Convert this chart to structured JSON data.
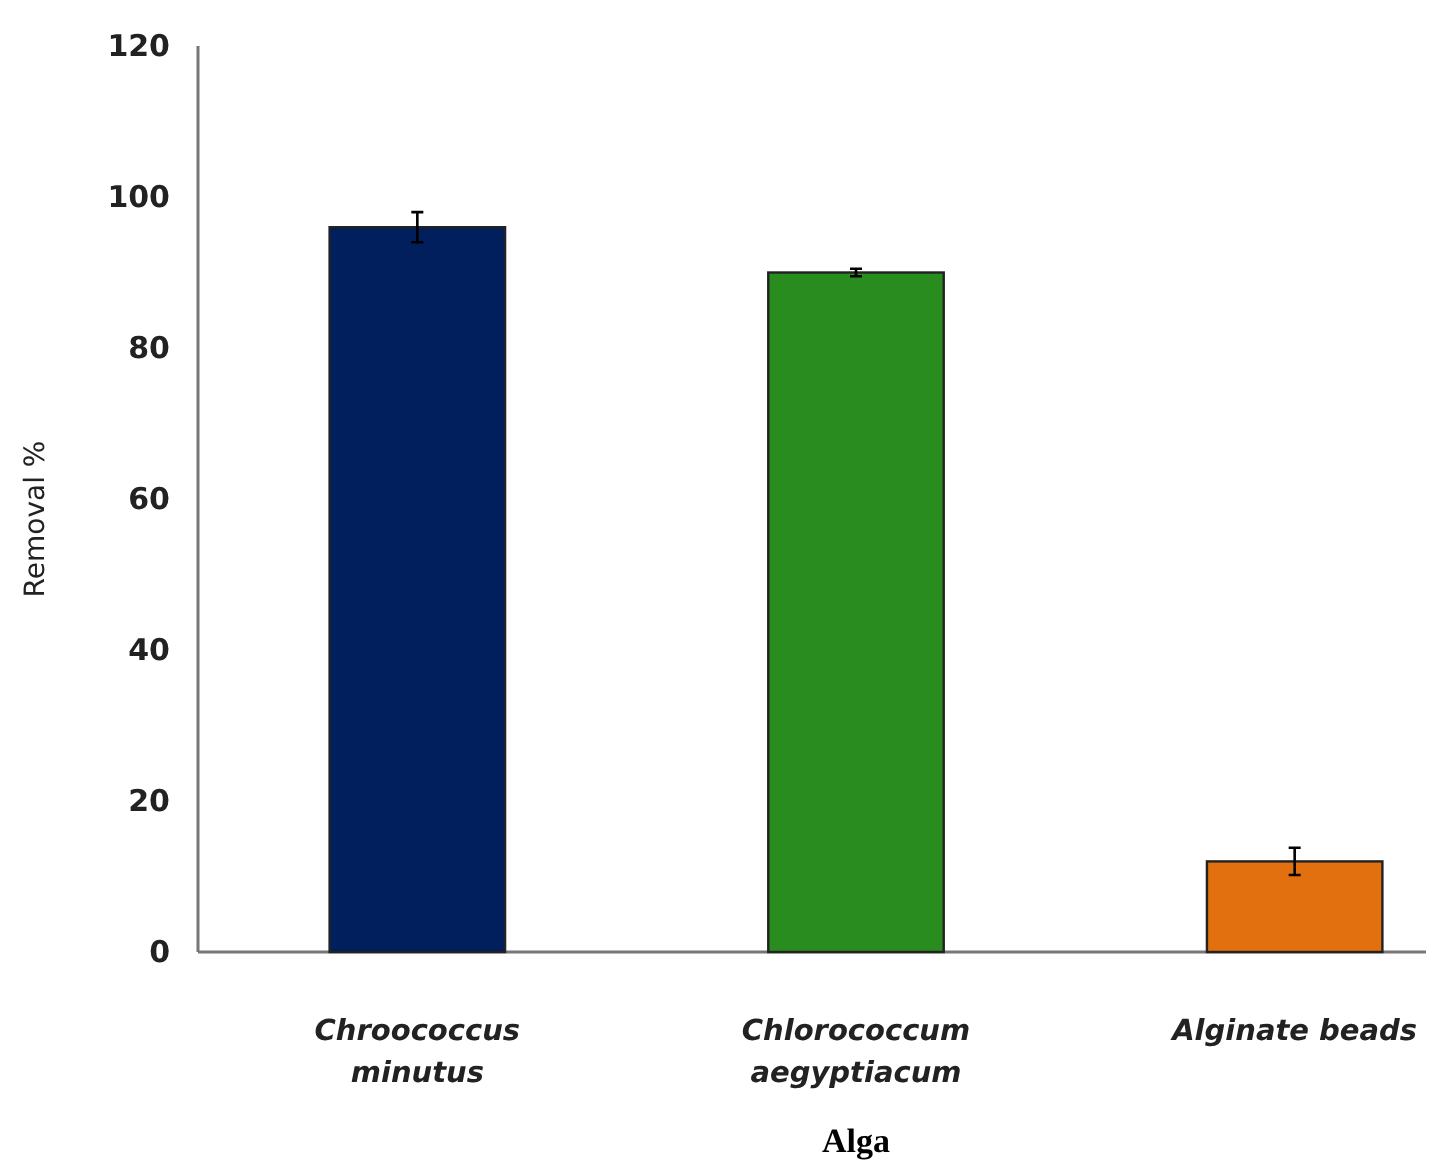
{
  "chart_data": {
    "type": "bar",
    "xlabel": "Alga",
    "ylabel": "Removal  %",
    "categories": [
      "Chroococcus minutus",
      "Chlorococcum aegyptiacum",
      "Alginate beads"
    ],
    "values": [
      96,
      90,
      12
    ],
    "colors": [
      "#001f5c",
      "#298c1e",
      "#e3700e"
    ],
    "errors": [
      2,
      0.5,
      1.8
    ],
    "ylim": [
      0,
      120
    ],
    "yticks": [
      0,
      20,
      40,
      60,
      80,
      100,
      120
    ],
    "grid": false
  }
}
